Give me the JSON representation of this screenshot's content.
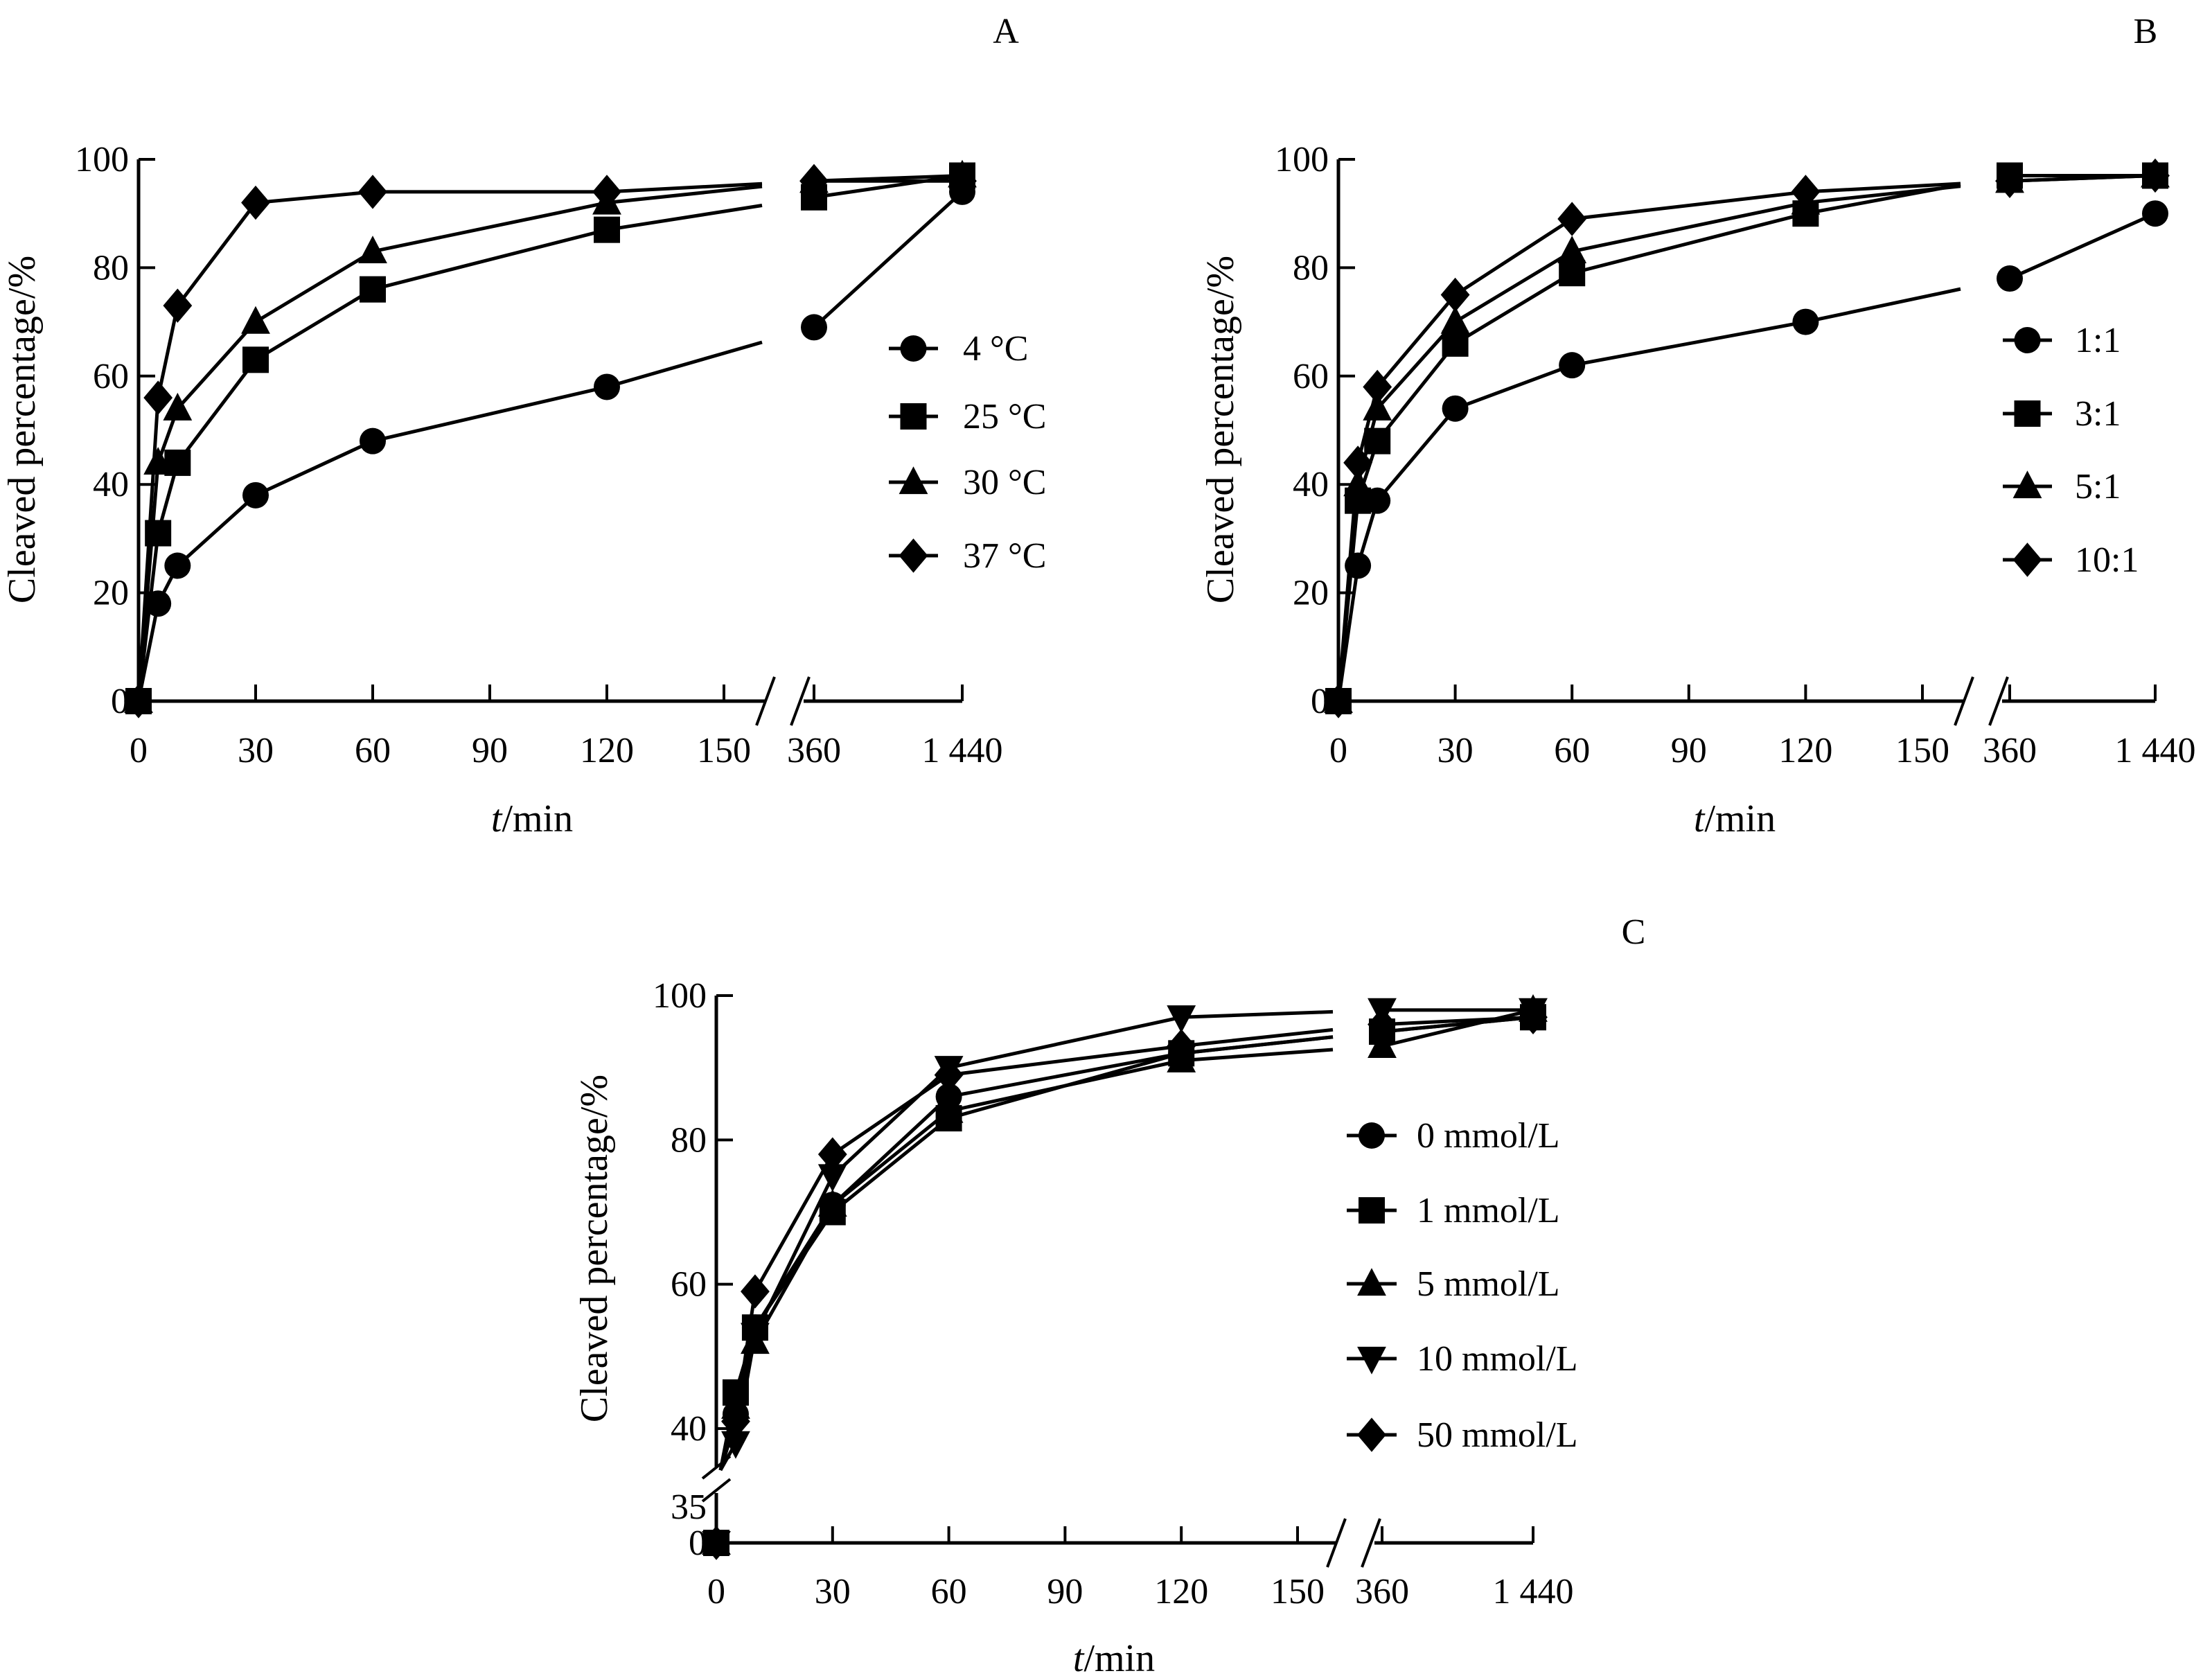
{
  "chart_data": [
    {
      "panel_label": "A",
      "type": "line",
      "xlabel_italic": "t",
      "xlabel_rest": "/min",
      "ylabel": "Cleaved percentage/%",
      "x": [
        0,
        5,
        10,
        30,
        60,
        120,
        360,
        1440
      ],
      "x_ticks": [
        "0",
        "30",
        "60",
        "90",
        "120",
        "150",
        "360",
        "1 440"
      ],
      "y_ticks": [
        "0",
        "20",
        "40",
        "60",
        "80",
        "100"
      ],
      "ylim": [
        0,
        100
      ],
      "x_axis_break": "between 150 and 360",
      "legend_position": "right",
      "series": [
        {
          "name": "4 °C",
          "marker": "circle",
          "values": [
            0,
            18,
            25,
            38,
            48,
            58,
            69,
            94
          ]
        },
        {
          "name": "25 °C",
          "marker": "square",
          "values": [
            0,
            31,
            44,
            63,
            76,
            87,
            93,
            97
          ]
        },
        {
          "name": "30 °C",
          "marker": "triangle-up",
          "values": [
            0,
            44,
            54,
            70,
            83,
            92,
            96,
            97
          ]
        },
        {
          "name": "37 °C",
          "marker": "diamond",
          "values": [
            0,
            56,
            73,
            92,
            94,
            94,
            96,
            96
          ]
        }
      ]
    },
    {
      "panel_label": "B",
      "type": "line",
      "xlabel_italic": "t",
      "xlabel_rest": "/min",
      "ylabel": "Cleaved percentage/%",
      "x": [
        0,
        5,
        10,
        30,
        60,
        120,
        360,
        1440
      ],
      "x_ticks": [
        "0",
        "30",
        "60",
        "90",
        "120",
        "150",
        "360",
        "1 440"
      ],
      "y_ticks": [
        "0",
        "20",
        "40",
        "60",
        "80",
        "100"
      ],
      "ylim": [
        0,
        100
      ],
      "x_axis_break": "between 150 and 360",
      "legend_position": "right",
      "series": [
        {
          "name": "1:1",
          "marker": "circle",
          "values": [
            0,
            25,
            37,
            54,
            62,
            70,
            78,
            90
          ]
        },
        {
          "name": "3:1",
          "marker": "square",
          "values": [
            0,
            37,
            48,
            66,
            79,
            90,
            97,
            97
          ]
        },
        {
          "name": "5:1",
          "marker": "triangle-up",
          "values": [
            0,
            40,
            54,
            70,
            83,
            92,
            96,
            97
          ]
        },
        {
          "name": "10:1",
          "marker": "diamond",
          "values": [
            0,
            44,
            58,
            75,
            89,
            94,
            96,
            97
          ]
        }
      ]
    },
    {
      "panel_label": "C",
      "type": "line",
      "xlabel_italic": "t",
      "xlabel_rest": "/min",
      "ylabel": "Cleaved percentage/%",
      "x": [
        0,
        5,
        10,
        30,
        60,
        120,
        360,
        1440
      ],
      "x_ticks": [
        "0",
        "30",
        "60",
        "90",
        "120",
        "150",
        "360",
        "1 440"
      ],
      "y_ticks": [
        "0",
        "35",
        "40",
        "60",
        "80",
        "100"
      ],
      "ylim": [
        0,
        100
      ],
      "x_axis_break": "between 150 and 360",
      "y_axis_break": "between 0 and 35",
      "legend_position": "right",
      "series": [
        {
          "name": "0 mmol/L",
          "marker": "circle",
          "values": [
            0,
            42,
            54,
            71,
            86,
            92,
            95,
            97
          ]
        },
        {
          "name": "1 mmol/L",
          "marker": "square",
          "values": [
            0,
            45,
            54,
            70,
            83,
            92,
            95,
            97
          ]
        },
        {
          "name": "5 mmol/L",
          "marker": "triangle-up",
          "values": [
            0,
            43,
            52,
            71,
            84,
            91,
            93,
            98
          ]
        },
        {
          "name": "10 mmol/L",
          "marker": "triangle-down",
          "values": [
            0,
            38,
            53,
            75,
            90,
            97,
            98,
            98
          ]
        },
        {
          "name": "50 mmol/L",
          "marker": "diamond",
          "values": [
            0,
            41,
            59,
            78,
            89,
            93,
            96,
            97
          ]
        }
      ]
    }
  ]
}
